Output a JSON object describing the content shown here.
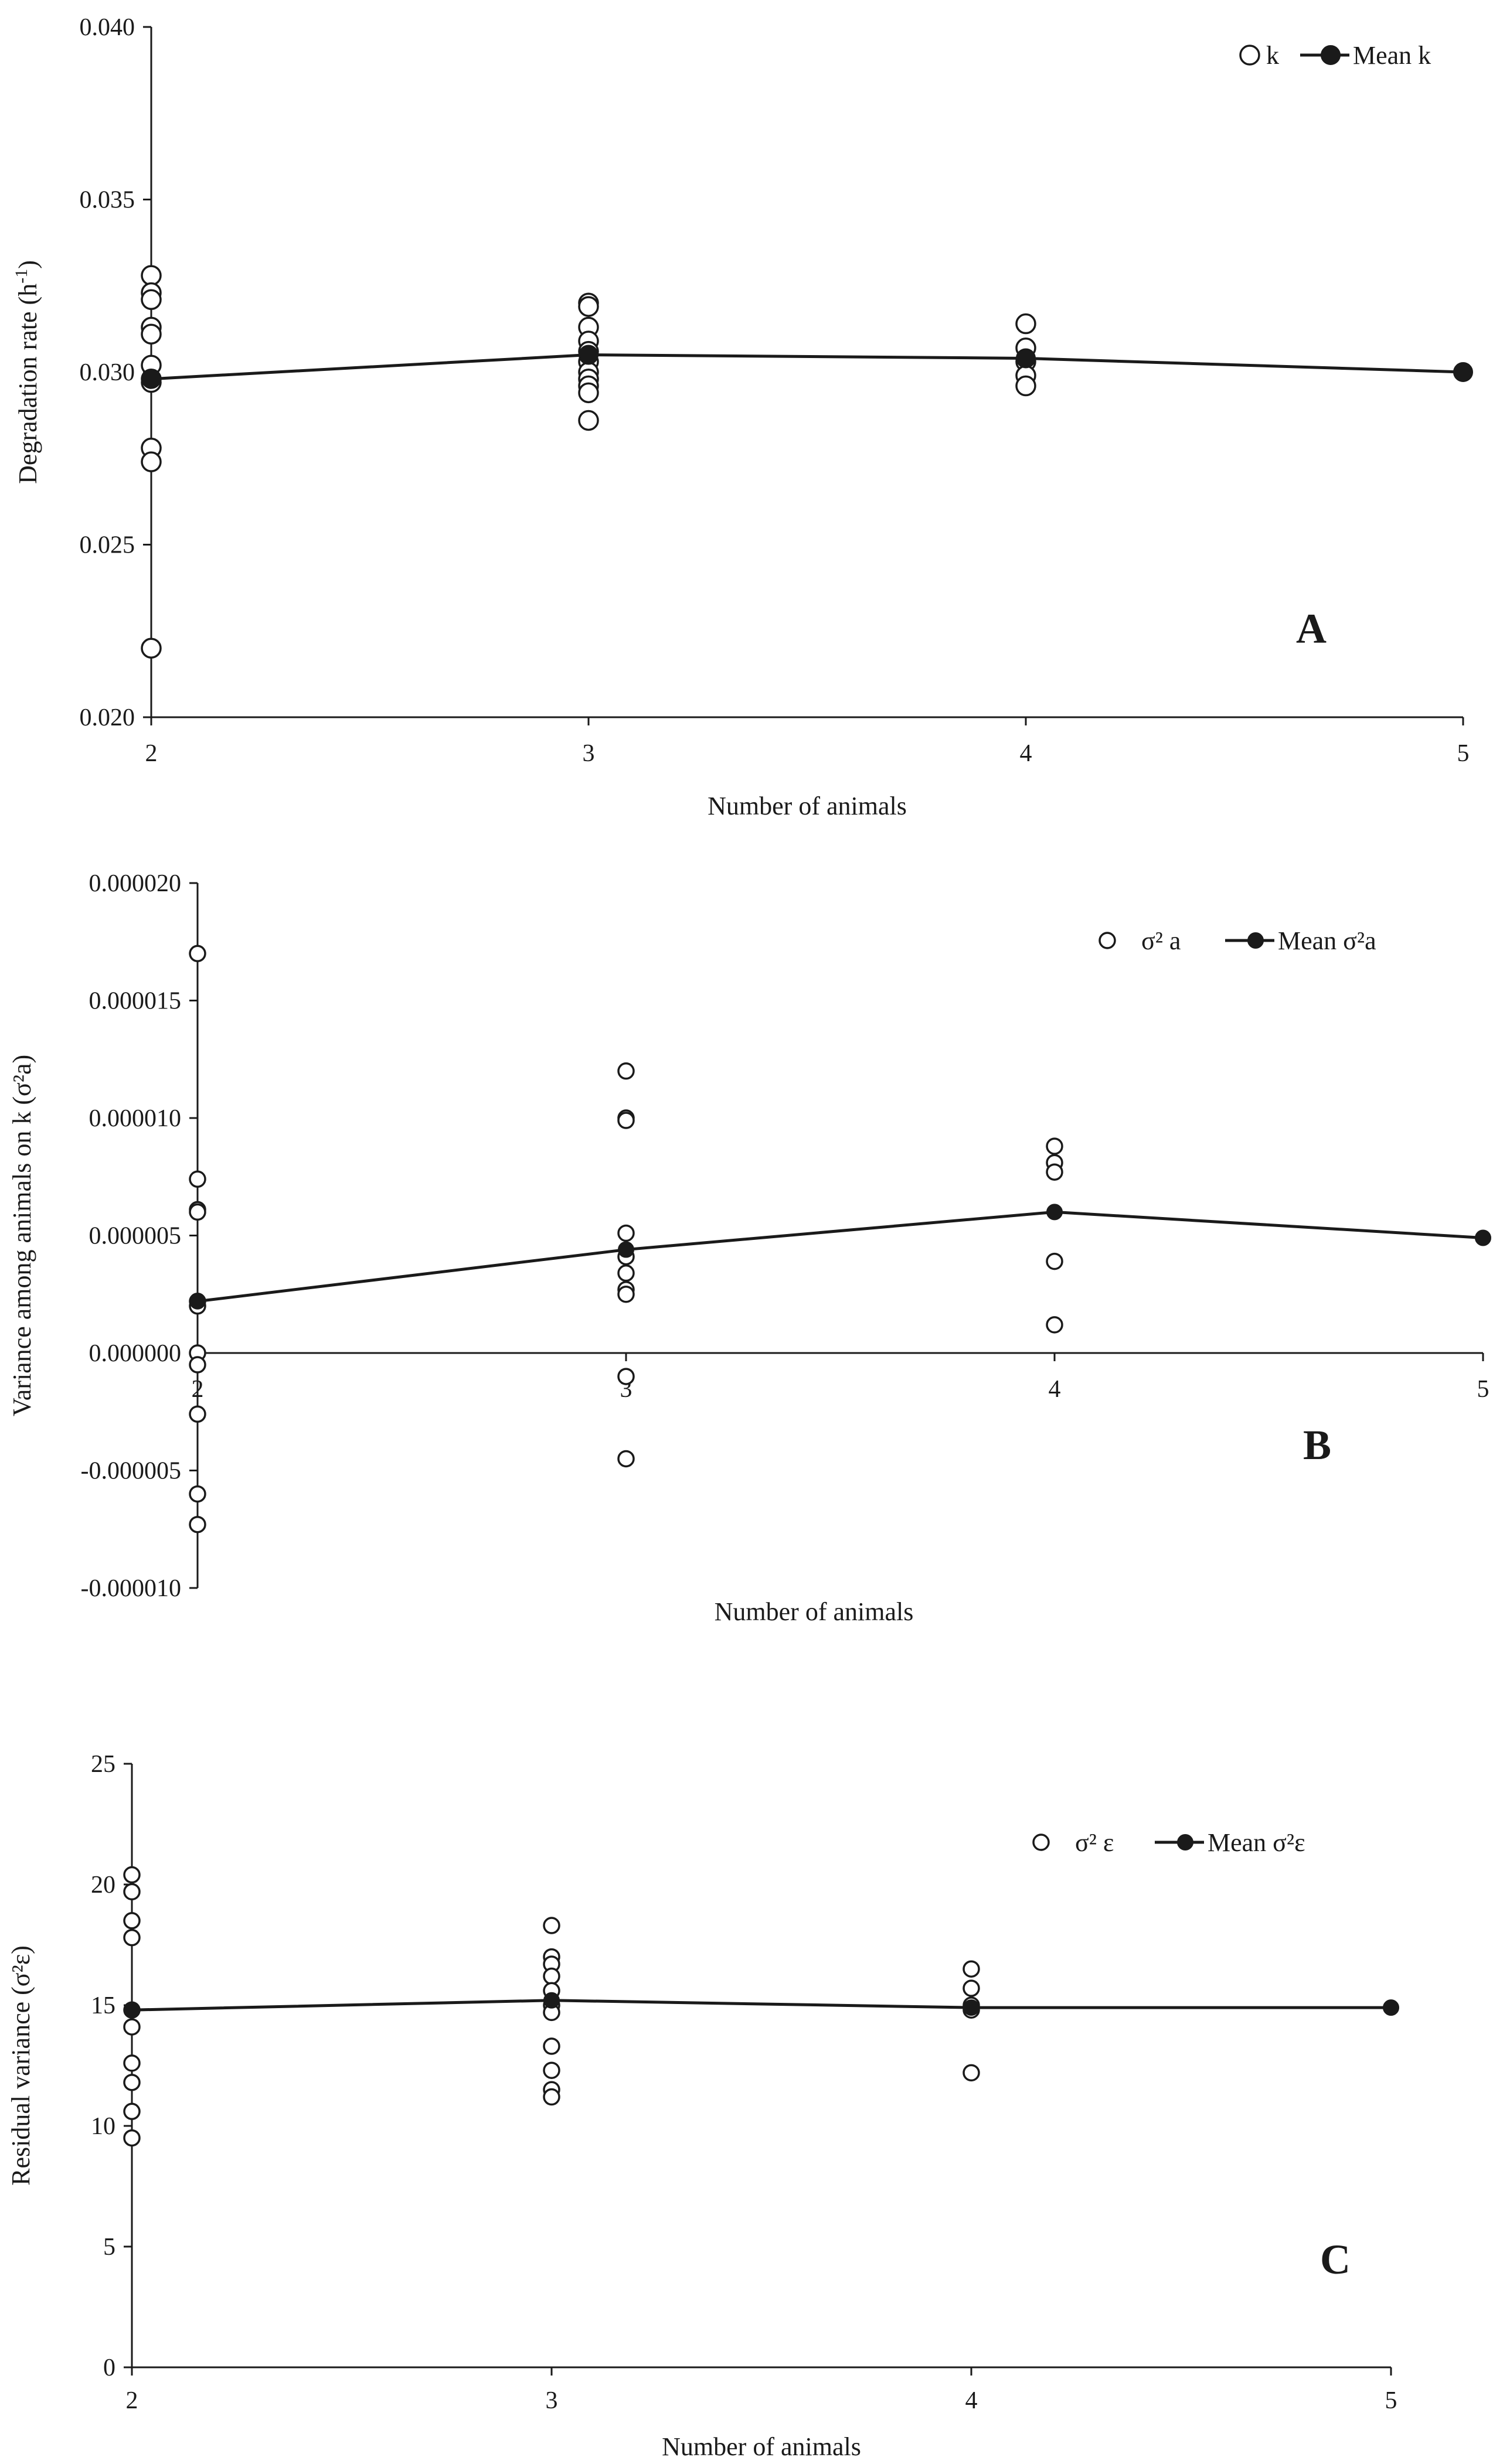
{
  "figure": {
    "background": "#ffffff",
    "ink": "#1a1a1a"
  },
  "chart_data": [
    {
      "type": "scatter",
      "panel_letter": "A",
      "xlabel": "Number of animals",
      "ylabel": "Degradation rate (h-1)",
      "ylabel_parts": [
        "Degradation rate (h",
        "-1",
        ")"
      ],
      "xlim": [
        2,
        5
      ],
      "ylim": [
        0.02,
        0.04
      ],
      "x_ticks": [
        2,
        3,
        4,
        5
      ],
      "x_tick_labels": [
        "2",
        "3",
        "4",
        "5"
      ],
      "y_ticks": [
        0.02,
        0.025,
        0.03,
        0.035,
        0.04
      ],
      "y_tick_labels": [
        "0.020",
        "0.025",
        "0.030",
        "0.035",
        "0.040"
      ],
      "legend": {
        "position": "top-right",
        "points_label": "k",
        "mean_label": "Mean k"
      },
      "series": [
        {
          "name": "k",
          "style": "open-circle",
          "points": [
            [
              2,
              0.0328
            ],
            [
              2,
              0.0323
            ],
            [
              2,
              0.0321
            ],
            [
              2,
              0.0313
            ],
            [
              2,
              0.0311
            ],
            [
              2,
              0.0302
            ],
            [
              2,
              0.0298
            ],
            [
              2,
              0.0297
            ],
            [
              2,
              0.0278
            ],
            [
              2,
              0.0274
            ],
            [
              2,
              0.022
            ],
            [
              3,
              0.032
            ],
            [
              3,
              0.0319
            ],
            [
              3,
              0.0313
            ],
            [
              3,
              0.0309
            ],
            [
              3,
              0.0306
            ],
            [
              3,
              0.0303
            ],
            [
              3,
              0.03
            ],
            [
              3,
              0.0298
            ],
            [
              3,
              0.0296
            ],
            [
              3,
              0.0294
            ],
            [
              3,
              0.0286
            ],
            [
              4,
              0.0314
            ],
            [
              4,
              0.0307
            ],
            [
              4,
              0.0303
            ],
            [
              4,
              0.0299
            ],
            [
              4,
              0.0296
            ]
          ]
        },
        {
          "name": "Mean k",
          "style": "filled-line",
          "x": [
            2,
            3,
            4,
            5
          ],
          "values": [
            0.0298,
            0.0305,
            0.0304,
            0.03
          ]
        }
      ]
    },
    {
      "type": "scatter",
      "panel_letter": "B",
      "xlabel": "Number of animals",
      "ylabel": "Variance among animals on k (σ²a)",
      "ylabel_parts": [
        "Variance among animals on k (σ²a)"
      ],
      "xlim": [
        2,
        5
      ],
      "ylim": [
        -1e-05,
        2e-05
      ],
      "x_ticks": [
        2,
        3,
        4,
        5
      ],
      "x_tick_labels": [
        "2",
        "3",
        "4",
        "5"
      ],
      "y_ticks": [
        -1e-05,
        -5e-06,
        0,
        5e-06,
        1e-05,
        1.5e-05,
        2e-05
      ],
      "y_tick_labels": [
        "-0.000010",
        "-0.000005",
        "0.000000",
        "0.000005",
        "0.000010",
        "0.000015",
        "0.000020"
      ],
      "legend": {
        "position": "top-right",
        "points_label": "σ² a",
        "mean_label": "Mean σ²a"
      },
      "series": [
        {
          "name": "σ² a",
          "style": "open-circle",
          "points": [
            [
              2,
              1.7e-05
            ],
            [
              2,
              7.4e-06
            ],
            [
              2,
              6.1e-06
            ],
            [
              2,
              6e-06
            ],
            [
              2,
              2.2e-06
            ],
            [
              2,
              2e-06
            ],
            [
              2,
              0.0
            ],
            [
              2,
              -5e-07
            ],
            [
              2,
              -2.6e-06
            ],
            [
              2,
              -6e-06
            ],
            [
              2,
              -7.3e-06
            ],
            [
              3,
              1.2e-05
            ],
            [
              3,
              1e-05
            ],
            [
              3,
              9.9e-06
            ],
            [
              3,
              5.1e-06
            ],
            [
              3,
              4.1e-06
            ],
            [
              3,
              3.4e-06
            ],
            [
              3,
              2.7e-06
            ],
            [
              3,
              2.5e-06
            ],
            [
              3,
              -1e-06
            ],
            [
              3,
              -4.5e-06
            ],
            [
              4,
              8.8e-06
            ],
            [
              4,
              8.1e-06
            ],
            [
              4,
              7.7e-06
            ],
            [
              4,
              3.9e-06
            ],
            [
              4,
              1.2e-06
            ]
          ]
        },
        {
          "name": "Mean σ²a",
          "style": "filled-line",
          "x": [
            2,
            3,
            4,
            5
          ],
          "values": [
            2.2e-06,
            4.4e-06,
            6e-06,
            4.9e-06
          ]
        }
      ]
    },
    {
      "type": "scatter",
      "panel_letter": "C",
      "xlabel": "Number of animals",
      "ylabel": "Residual variance (σ²ε)",
      "ylabel_parts": [
        "Residual variance (σ²ε)"
      ],
      "xlim": [
        2,
        5
      ],
      "ylim": [
        0,
        25
      ],
      "x_ticks": [
        2,
        3,
        4,
        5
      ],
      "x_tick_labels": [
        "2",
        "3",
        "4",
        "5"
      ],
      "y_ticks": [
        0,
        5,
        10,
        15,
        20,
        25
      ],
      "y_tick_labels": [
        "0",
        "5",
        "10",
        "15",
        "20",
        "25"
      ],
      "legend": {
        "position": "top-right",
        "points_label": "σ² ε",
        "mean_label": "Mean σ²ε"
      },
      "series": [
        {
          "name": "σ² ε",
          "style": "open-circle",
          "points": [
            [
              2,
              20.4
            ],
            [
              2,
              19.7
            ],
            [
              2,
              18.5
            ],
            [
              2,
              17.8
            ],
            [
              2,
              14.8
            ],
            [
              2,
              14.1
            ],
            [
              2,
              12.6
            ],
            [
              2,
              11.8
            ],
            [
              2,
              10.6
            ],
            [
              2,
              9.5
            ],
            [
              3,
              18.3
            ],
            [
              3,
              17.0
            ],
            [
              3,
              16.7
            ],
            [
              3,
              16.2
            ],
            [
              3,
              15.6
            ],
            [
              3,
              15.0
            ],
            [
              3,
              14.7
            ],
            [
              3,
              13.3
            ],
            [
              3,
              12.3
            ],
            [
              3,
              11.5
            ],
            [
              3,
              11.2
            ],
            [
              4,
              16.5
            ],
            [
              4,
              15.7
            ],
            [
              4,
              15.0
            ],
            [
              4,
              14.8
            ],
            [
              4,
              12.2
            ]
          ]
        },
        {
          "name": "Mean σ²ε",
          "style": "filled-line",
          "x": [
            2,
            3,
            4,
            5
          ],
          "values": [
            14.8,
            15.2,
            14.9,
            14.9
          ]
        }
      ]
    }
  ]
}
